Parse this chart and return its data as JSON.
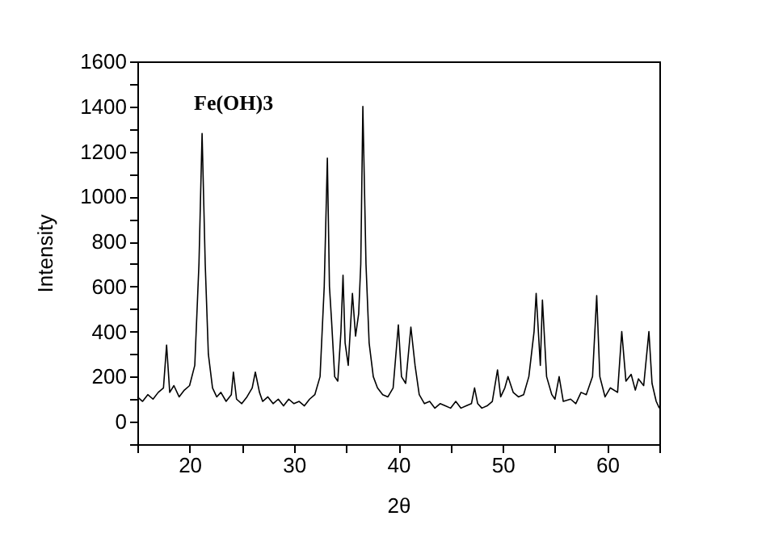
{
  "chart_data": {
    "type": "line",
    "xlabel": "2θ",
    "ylabel": "Intensity",
    "annotations": [
      "Fe(OH)3"
    ],
    "xlim": [
      15,
      65
    ],
    "ylim": [
      -100,
      1600
    ],
    "xticks": [
      {
        "value": 15,
        "label": null
      },
      20,
      {
        "value": 25,
        "label": null
      },
      30,
      {
        "value": 35,
        "label": null
      },
      40,
      {
        "value": 45,
        "label": null
      },
      50,
      {
        "value": 55,
        "label": null
      },
      60,
      {
        "value": 65,
        "label": null
      }
    ],
    "yticks": [
      {
        "value": -100,
        "label": null
      },
      0,
      {
        "value": 100,
        "label": null
      },
      200,
      {
        "value": 300,
        "label": null
      },
      400,
      {
        "value": 500,
        "label": null
      },
      600,
      {
        "value": 700,
        "label": null
      },
      800,
      {
        "value": 900,
        "label": null
      },
      1000,
      {
        "value": 1100,
        "label": null
      },
      1200,
      {
        "value": 1300,
        "label": null
      },
      1400,
      {
        "value": 1500,
        "label": null
      },
      1600
    ],
    "grid": false,
    "marker": "none",
    "line_style": "solid",
    "series": [
      {
        "color": "#000000",
        "x": [
          15,
          15.5,
          16,
          16.5,
          17,
          17.5,
          17.8,
          18.1,
          18.5,
          19,
          19.5,
          20,
          20.5,
          20.9,
          21.2,
          21.5,
          21.8,
          22.2,
          22.6,
          23,
          23.5,
          24,
          24.2,
          24.5,
          25,
          25.5,
          26,
          26.3,
          26.7,
          27,
          27.5,
          28,
          28.5,
          29,
          29.5,
          30,
          30.5,
          31,
          31.5,
          32,
          32.5,
          32.9,
          33.2,
          33.4,
          33.6,
          33.9,
          34.2,
          34.5,
          34.7,
          34.9,
          35.2,
          35.6,
          35.9,
          36.2,
          36.4,
          36.6,
          36.9,
          37.2,
          37.6,
          38,
          38.5,
          39,
          39.5,
          40,
          40.3,
          40.7,
          41.2,
          41.6,
          42,
          42.5,
          43,
          43.5,
          44,
          44.5,
          45,
          45.5,
          46,
          46.5,
          47,
          47.3,
          47.6,
          48,
          48.5,
          49,
          49.5,
          49.8,
          50.2,
          50.5,
          51,
          51.5,
          52,
          52.5,
          53,
          53.2,
          53.6,
          53.8,
          54.2,
          54.7,
          55,
          55.4,
          55.8,
          56.5,
          57,
          57.5,
          58,
          58.6,
          59,
          59.3,
          59.8,
          60.3,
          61,
          61.4,
          61.8,
          62.3,
          62.7,
          63,
          63.5,
          64,
          64.3,
          64.7,
          65
        ],
        "values": [
          110,
          90,
          120,
          100,
          130,
          150,
          340,
          130,
          160,
          110,
          140,
          160,
          250,
          700,
          1280,
          700,
          300,
          150,
          110,
          130,
          90,
          120,
          220,
          100,
          80,
          110,
          150,
          220,
          130,
          90,
          110,
          80,
          100,
          70,
          100,
          80,
          90,
          70,
          100,
          120,
          200,
          600,
          1170,
          600,
          450,
          200,
          180,
          400,
          650,
          350,
          250,
          570,
          380,
          480,
          700,
          1400,
          700,
          350,
          200,
          150,
          120,
          110,
          150,
          430,
          200,
          170,
          420,
          250,
          120,
          80,
          90,
          60,
          80,
          70,
          60,
          90,
          60,
          70,
          80,
          150,
          80,
          60,
          70,
          90,
          230,
          110,
          150,
          200,
          130,
          110,
          120,
          200,
          400,
          570,
          250,
          540,
          200,
          120,
          100,
          200,
          90,
          100,
          80,
          130,
          120,
          200,
          560,
          200,
          110,
          150,
          130,
          400,
          180,
          210,
          140,
          190,
          160,
          400,
          170,
          90,
          60
        ]
      }
    ]
  }
}
